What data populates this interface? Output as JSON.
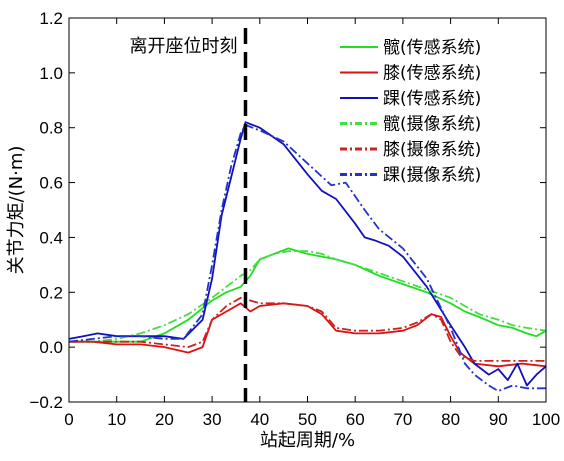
{
  "chart_data": {
    "type": "line",
    "xlabel": "站起周期/%",
    "ylabel": "关节力矩/(N·m)",
    "xlim": [
      0,
      100
    ],
    "ylim": [
      -0.2,
      1.2
    ],
    "x_ticks": [
      0,
      10,
      20,
      30,
      40,
      50,
      60,
      70,
      80,
      90,
      100
    ],
    "y_ticks": [
      -0.2,
      0.0,
      0.2,
      0.4,
      0.6,
      0.8,
      1.0,
      1.2
    ],
    "y_tick_labels": [
      "−0.2",
      "0.0",
      "0.2",
      "0.4",
      "0.6",
      "0.8",
      "1.0",
      "1.2"
    ],
    "grid": false,
    "legend_position": "top-right",
    "annotation": {
      "text": "离开座位时刻",
      "x": 37
    },
    "series": [
      {
        "name": "髋(传感系统)",
        "color": "#22dd22",
        "style": "solid",
        "x": [
          0,
          5,
          10,
          15,
          20,
          25,
          30,
          33,
          36,
          38,
          40,
          43,
          46,
          50,
          53,
          56,
          60,
          65,
          70,
          75,
          80,
          83,
          86,
          90,
          93,
          96,
          98,
          100
        ],
        "y": [
          0.02,
          0.02,
          0.02,
          0.02,
          0.05,
          0.1,
          0.17,
          0.2,
          0.22,
          0.26,
          0.32,
          0.34,
          0.36,
          0.34,
          0.33,
          0.32,
          0.3,
          0.26,
          0.23,
          0.2,
          0.16,
          0.13,
          0.11,
          0.08,
          0.07,
          0.05,
          0.04,
          0.06
        ]
      },
      {
        "name": "膝(传感系统)",
        "color": "#dd1111",
        "style": "solid",
        "x": [
          0,
          5,
          10,
          15,
          20,
          25,
          28,
          30,
          33,
          36,
          38,
          40,
          45,
          50,
          53,
          56,
          60,
          65,
          70,
          73,
          76,
          78,
          80,
          82,
          85,
          90,
          95,
          100
        ],
        "y": [
          0.02,
          0.02,
          0.01,
          0.01,
          0.0,
          -0.02,
          0.0,
          0.1,
          0.13,
          0.16,
          0.13,
          0.15,
          0.16,
          0.15,
          0.12,
          0.06,
          0.05,
          0.05,
          0.06,
          0.08,
          0.12,
          0.11,
          0.04,
          -0.02,
          -0.06,
          -0.07,
          -0.06,
          -0.07
        ]
      },
      {
        "name": "踝(传感系统)",
        "color": "#1111bb",
        "style": "solid",
        "x": [
          0,
          3,
          6,
          10,
          15,
          20,
          24,
          28,
          30,
          32,
          34,
          36,
          37,
          40,
          45,
          50,
          53,
          56,
          60,
          62,
          64,
          67,
          70,
          75,
          80,
          83,
          85,
          88,
          90,
          92,
          94,
          96,
          98,
          100
        ],
        "y": [
          0.03,
          0.04,
          0.05,
          0.04,
          0.04,
          0.04,
          0.03,
          0.1,
          0.25,
          0.48,
          0.62,
          0.76,
          0.82,
          0.8,
          0.74,
          0.63,
          0.57,
          0.54,
          0.45,
          0.4,
          0.39,
          0.37,
          0.33,
          0.22,
          0.08,
          0.0,
          -0.06,
          -0.1,
          -0.08,
          -0.12,
          -0.06,
          -0.14,
          -0.1,
          -0.07
        ]
      },
      {
        "name": "髋(摄像系统)",
        "color": "#44dd44",
        "style": "dashdot",
        "x": [
          0,
          5,
          10,
          15,
          20,
          25,
          30,
          33,
          36,
          38,
          40,
          43,
          46,
          50,
          53,
          56,
          60,
          65,
          70,
          75,
          80,
          83,
          86,
          90,
          93,
          96,
          100
        ],
        "y": [
          0.02,
          0.02,
          0.03,
          0.05,
          0.08,
          0.12,
          0.18,
          0.22,
          0.26,
          0.28,
          0.32,
          0.34,
          0.35,
          0.35,
          0.34,
          0.32,
          0.3,
          0.27,
          0.24,
          0.21,
          0.18,
          0.15,
          0.12,
          0.1,
          0.08,
          0.07,
          0.06
        ]
      },
      {
        "name": "膝(摄像系统)",
        "color": "#cc2222",
        "style": "dashdot",
        "x": [
          0,
          5,
          10,
          15,
          20,
          25,
          28,
          30,
          33,
          36,
          38,
          40,
          45,
          50,
          53,
          56,
          60,
          65,
          70,
          73,
          76,
          78,
          80,
          82,
          85,
          90,
          95,
          100
        ],
        "y": [
          0.02,
          0.02,
          0.02,
          0.02,
          0.01,
          0.0,
          0.02,
          0.1,
          0.15,
          0.18,
          0.17,
          0.16,
          0.16,
          0.15,
          0.13,
          0.07,
          0.06,
          0.06,
          0.07,
          0.09,
          0.12,
          0.1,
          0.02,
          -0.03,
          -0.05,
          -0.05,
          -0.05,
          -0.05
        ]
      },
      {
        "name": "踝(摄像系统)",
        "color": "#2233cc",
        "style": "dashdot",
        "x": [
          0,
          5,
          10,
          15,
          20,
          24,
          28,
          30,
          32,
          34,
          36,
          37,
          40,
          45,
          50,
          55,
          58,
          62,
          65,
          70,
          75,
          80,
          83,
          85,
          88,
          90,
          93,
          96,
          100
        ],
        "y": [
          0.02,
          0.03,
          0.04,
          0.04,
          0.03,
          0.03,
          0.12,
          0.3,
          0.5,
          0.66,
          0.78,
          0.81,
          0.79,
          0.75,
          0.67,
          0.59,
          0.6,
          0.5,
          0.43,
          0.36,
          0.25,
          0.07,
          -0.06,
          -0.1,
          -0.14,
          -0.16,
          -0.14,
          -0.15,
          -0.15
        ]
      }
    ]
  }
}
